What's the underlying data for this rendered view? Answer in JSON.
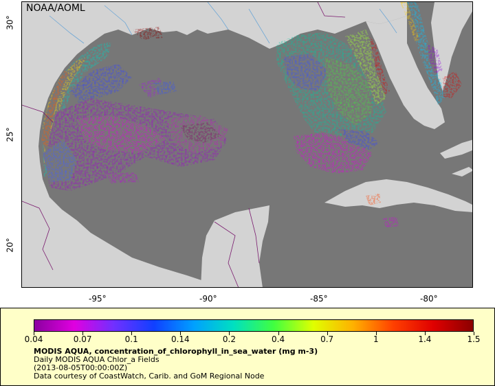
{
  "header": {
    "org": "NOAA/AOML"
  },
  "map": {
    "lon_ticks": [
      "-95°",
      "-90°",
      "-85°",
      "-80°"
    ],
    "lat_ticks": [
      "30°",
      "25°",
      "20°"
    ],
    "colors": {
      "ocean_no_data": "#777777",
      "land": "#d3d3d3",
      "rivers": "#6fa8d6",
      "borders": "#7a1a6e"
    }
  },
  "legend": {
    "ticks": [
      "0.04",
      "0.07",
      "0.1",
      "0.14",
      "0.2",
      "0.4",
      "0.7",
      "1",
      "1.4",
      "1.5"
    ],
    "colormap": [
      "#8b00a0",
      "#e000e0",
      "#7030ff",
      "#1040ff",
      "#00a0ff",
      "#00e0c0",
      "#40ff40",
      "#e0ff00",
      "#ffb000",
      "#ff4000",
      "#e00000",
      "#8b0000"
    ],
    "title": "MODIS AQUA, concentration_of_chlorophyll_in_sea_water (mg m-3)",
    "lines": [
      "Daily MODIS AQUA Chlor_a Fields",
      "(2013-08-05T00:00:00Z)",
      "Data courtesy of CoastWatch, Carib. and GoM Regional Node"
    ]
  }
}
